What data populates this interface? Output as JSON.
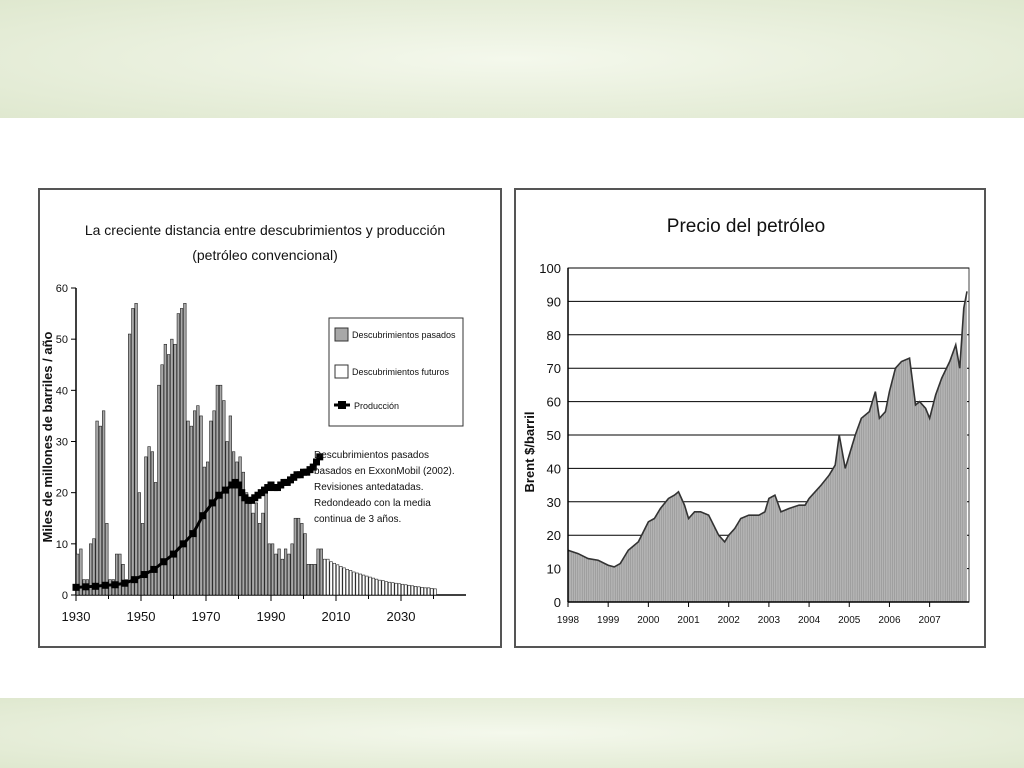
{
  "chart_data": [
    {
      "type": "bar",
      "title": "La creciente distancia entre descubrimientos y producción",
      "subtitle": "(petróleo convencional)",
      "ylabel": "Miles de millones de barriles / año",
      "xlabel": "",
      "ylim": [
        0,
        60
      ],
      "xlim": [
        1930,
        2050
      ],
      "y_ticks": [
        0,
        10,
        20,
        30,
        40,
        50,
        60
      ],
      "x_ticks": [
        1930,
        1950,
        1970,
        1990,
        2010,
        2030
      ],
      "grid": false,
      "legend_position": "top-right",
      "legend": [
        {
          "label": "Descubrimientos pasados",
          "style": "grey-bar"
        },
        {
          "label": "Descubrimientos futuros",
          "style": "white-bar"
        },
        {
          "label": "Producción",
          "style": "black-line-square"
        }
      ],
      "annotation": [
        "Descubrimientos pasados",
        "basados en ExxonMobil (2002).",
        "Revisiones antedatadas.",
        "Redondeado con la media",
        "continua de 3 años."
      ],
      "series": [
        {
          "name": "Descubrimientos pasados",
          "type": "bar",
          "x": [
            1930,
            1931,
            1932,
            1933,
            1934,
            1935,
            1936,
            1937,
            1938,
            1939,
            1940,
            1941,
            1942,
            1943,
            1944,
            1945,
            1946,
            1947,
            1948,
            1949,
            1950,
            1951,
            1952,
            1953,
            1954,
            1955,
            1956,
            1957,
            1958,
            1959,
            1960,
            1961,
            1962,
            1963,
            1964,
            1965,
            1966,
            1967,
            1968,
            1969,
            1970,
            1971,
            1972,
            1973,
            1974,
            1975,
            1976,
            1977,
            1978,
            1979,
            1980,
            1981,
            1982,
            1983,
            1984,
            1985,
            1986,
            1987,
            1988,
            1989,
            1990,
            1991,
            1992,
            1993,
            1994,
            1995,
            1996,
            1997,
            1998,
            1999,
            2000,
            2001,
            2002,
            2003,
            2004,
            2005
          ],
          "values": [
            8,
            9,
            3,
            3,
            10,
            11,
            34,
            33,
            36,
            14,
            3,
            3,
            8,
            8,
            6,
            3,
            51,
            56,
            57,
            20,
            14,
            27,
            29,
            28,
            22,
            41,
            45,
            49,
            47,
            50,
            49,
            55,
            56,
            57,
            34,
            33,
            36,
            37,
            35,
            25,
            26,
            34,
            36,
            41,
            41,
            38,
            30,
            35,
            28,
            26,
            27,
            24,
            20,
            18,
            16,
            18,
            14,
            16,
            20,
            10,
            10,
            8,
            9,
            7,
            9,
            8,
            10,
            15,
            15,
            14,
            12,
            6,
            6,
            6,
            9,
            9
          ]
        },
        {
          "name": "Descubrimientos futuros",
          "type": "bar",
          "x": [
            2006,
            2007,
            2008,
            2009,
            2010,
            2011,
            2012,
            2013,
            2014,
            2015,
            2016,
            2017,
            2018,
            2019,
            2020,
            2021,
            2022,
            2023,
            2024,
            2025,
            2026,
            2027,
            2028,
            2029,
            2030,
            2031,
            2032,
            2033,
            2034,
            2035,
            2036,
            2037,
            2038,
            2039,
            2040
          ],
          "values": [
            7,
            7,
            6.5,
            6.2,
            5.9,
            5.6,
            5.3,
            5,
            4.8,
            4.5,
            4.3,
            4.1,
            3.9,
            3.7,
            3.5,
            3.3,
            3.1,
            2.9,
            2.8,
            2.6,
            2.5,
            2.4,
            2.3,
            2.2,
            2.1,
            2,
            1.9,
            1.8,
            1.7,
            1.6,
            1.5,
            1.4,
            1.4,
            1.3,
            1.2
          ]
        },
        {
          "name": "Producción",
          "type": "line",
          "x": [
            1930,
            1933,
            1936,
            1939,
            1942,
            1945,
            1948,
            1951,
            1954,
            1957,
            1960,
            1963,
            1966,
            1969,
            1972,
            1974,
            1976,
            1978,
            1979,
            1980,
            1981,
            1982,
            1983,
            1984,
            1985,
            1986,
            1987,
            1988,
            1989,
            1990,
            1991,
            1992,
            1993,
            1994,
            1995,
            1996,
            1997,
            1998,
            1999,
            2000,
            2001,
            2002,
            2003,
            2004,
            2005
          ],
          "values": [
            1.5,
            1.6,
            1.7,
            1.9,
            2,
            2.3,
            3,
            4,
            5,
            6.5,
            8,
            10,
            12,
            15.5,
            18,
            19.5,
            20.5,
            21.5,
            22,
            21.5,
            20,
            19,
            18.5,
            18.5,
            19,
            19.5,
            20,
            20.5,
            21,
            21.5,
            21,
            21,
            21.5,
            22,
            22,
            22.5,
            23,
            23.5,
            23.5,
            24,
            24,
            24.5,
            25,
            26,
            27
          ]
        }
      ]
    },
    {
      "type": "area",
      "title": "Precio del petróleo",
      "ylabel": "Brent $/barril",
      "xlabel": "",
      "ylim": [
        0,
        100
      ],
      "y_ticks": [
        0,
        10,
        20,
        30,
        40,
        50,
        60,
        70,
        80,
        90,
        100
      ],
      "x_ticks": [
        "1998",
        "1999",
        "2000",
        "2001",
        "2002",
        "2003",
        "2004",
        "2005",
        "2006",
        "2007"
      ],
      "grid": true,
      "series": [
        {
          "x": [
            1998.0,
            1998.25,
            1998.5,
            1998.75,
            1999.0,
            1999.15,
            1999.3,
            1999.5,
            1999.75,
            2000.0,
            2000.15,
            2000.3,
            2000.5,
            2000.65,
            2000.75,
            2000.9,
            2001.0,
            2001.15,
            2001.3,
            2001.5,
            2001.75,
            2001.9,
            2002.0,
            2002.15,
            2002.3,
            2002.5,
            2002.75,
            2002.9,
            2003.0,
            2003.15,
            2003.3,
            2003.5,
            2003.75,
            2003.9,
            2004.0,
            2004.15,
            2004.3,
            2004.5,
            2004.65,
            2004.75,
            2004.9,
            2005.0,
            2005.15,
            2005.3,
            2005.5,
            2005.65,
            2005.75,
            2005.9,
            2006.0,
            2006.15,
            2006.3,
            2006.5,
            2006.65,
            2006.75,
            2006.9,
            2007.0,
            2007.15,
            2007.3,
            2007.5,
            2007.65,
            2007.75,
            2007.85,
            2007.93
          ],
          "values": [
            15.5,
            14.5,
            13,
            12.5,
            11,
            10.5,
            11.5,
            15.5,
            18,
            24,
            25,
            28,
            31,
            32,
            33,
            29,
            25,
            27,
            27,
            26,
            20,
            18,
            20,
            22,
            25,
            26,
            26,
            27,
            31,
            32,
            27,
            28,
            29,
            29,
            31,
            33,
            35,
            38,
            41,
            50,
            40,
            44,
            50,
            55,
            57,
            63,
            55,
            57,
            63,
            70,
            72,
            73,
            59,
            60,
            58,
            55,
            62,
            67,
            72,
            77,
            70,
            88,
            93
          ]
        }
      ]
    }
  ]
}
